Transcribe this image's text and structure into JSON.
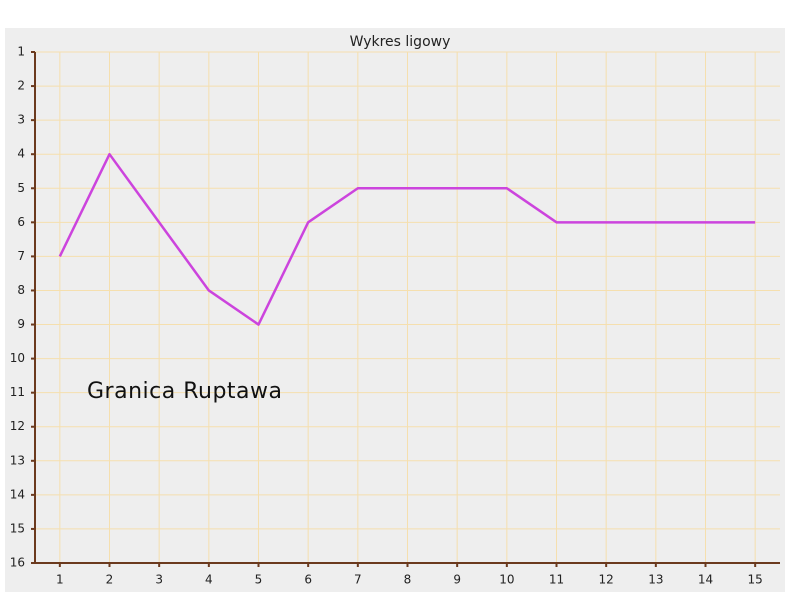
{
  "chart_data": {
    "type": "line",
    "title": "Wykres ligowy",
    "x": [
      1,
      2,
      3,
      4,
      5,
      6,
      7,
      8,
      9,
      10,
      11,
      12,
      13,
      14,
      15
    ],
    "series": [
      {
        "name": "Granica Ruptawa",
        "color": "#cc44dd",
        "values": [
          7,
          4,
          6,
          8,
          9,
          6,
          5,
          5,
          5,
          5,
          6,
          6,
          6,
          6,
          6
        ]
      }
    ],
    "annotation": "Granica Ruptawa",
    "xlim": [
      0.5,
      15.5
    ],
    "xticks": [
      1,
      2,
      3,
      4,
      5,
      6,
      7,
      8,
      9,
      10,
      11,
      12,
      13,
      14,
      15
    ],
    "ylim": [
      16,
      1
    ],
    "yticks": [
      1,
      2,
      3,
      4,
      5,
      6,
      7,
      8,
      9,
      10,
      11,
      12,
      13,
      14,
      15,
      16
    ],
    "grid": true
  }
}
